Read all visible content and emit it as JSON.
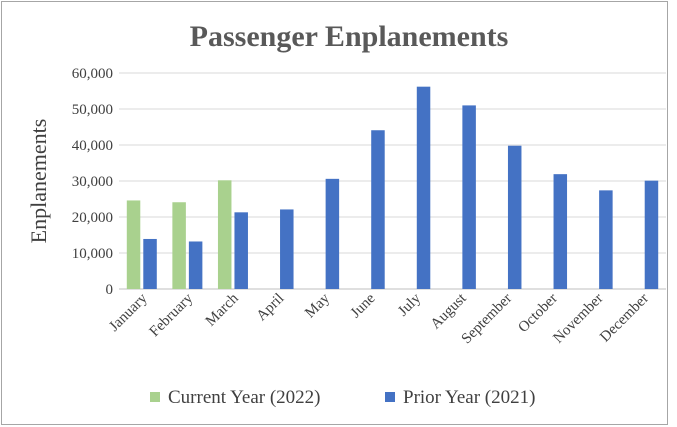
{
  "chart_data": {
    "type": "bar",
    "title": "Passenger Enplanements",
    "xlabel": "",
    "ylabel": "Enplanements",
    "ylim": [
      0,
      60000
    ],
    "yticks": [
      "0",
      "10,000",
      "20,000",
      "30,000",
      "40,000",
      "50,000",
      "60,000"
    ],
    "grid": true,
    "legend_position": "bottom",
    "categories": [
      "January",
      "February",
      "March",
      "April",
      "May",
      "June",
      "July",
      "August",
      "September",
      "October",
      "November",
      "December"
    ],
    "series": [
      {
        "name": "Current Year (2022)",
        "color": "#a9d18e",
        "values": [
          24600,
          24100,
          30200,
          null,
          null,
          null,
          null,
          null,
          null,
          null,
          null,
          null
        ]
      },
      {
        "name": "Prior Year (2021)",
        "color": "#4472c4",
        "values": [
          13900,
          13200,
          21300,
          22100,
          30600,
          44100,
          56200,
          51000,
          39800,
          31900,
          27400,
          30100
        ]
      }
    ]
  }
}
